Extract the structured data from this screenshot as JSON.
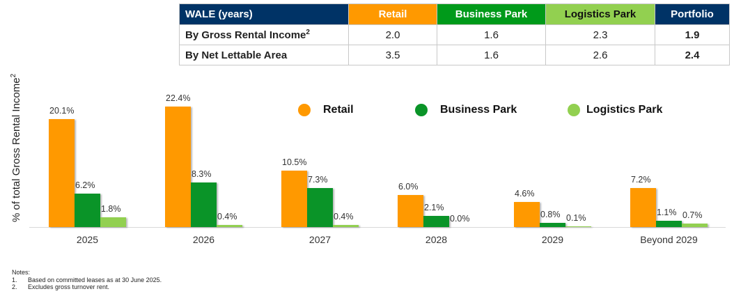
{
  "table": {
    "header": {
      "label": "WALE (years)",
      "columns": [
        {
          "name": "Retail",
          "bg": "#FF9900",
          "fg": "#FFFFFF"
        },
        {
          "name": "Business Park",
          "bg": "#009A1A",
          "fg": "#FFFFFF"
        },
        {
          "name": "Logistics Park",
          "bg": "#92D050",
          "fg": "#111111"
        },
        {
          "name": "Portfolio",
          "bg": "#003366",
          "fg": "#FFFFFF"
        }
      ],
      "label_bg": "#003366"
    },
    "rows": [
      {
        "label": "By Gross Rental Income",
        "sup": "2",
        "values": [
          "2.0",
          "1.6",
          "2.3",
          "1.9"
        ]
      },
      {
        "label": "By Net Lettable Area",
        "sup": "",
        "values": [
          "3.5",
          "1.6",
          "2.6",
          "2.4"
        ]
      }
    ]
  },
  "legend": [
    {
      "label": "Retail",
      "color": "#FF9900"
    },
    {
      "label": "Business Park",
      "color": "#0A9428"
    },
    {
      "label": "Logistics Park",
      "color": "#92D050"
    }
  ],
  "axis": {
    "ylabel": "% of total Gross Rental Income",
    "ylabel_sup": "2"
  },
  "notes": {
    "title": "Notes:",
    "items": [
      {
        "num": "1.",
        "text": "Based on committed leases as at 30 June 2025."
      },
      {
        "num": "2.",
        "text": "Excludes gross turnover rent."
      }
    ]
  },
  "chart_data": {
    "type": "bar",
    "title": "",
    "xlabel": "",
    "ylabel": "% of total Gross Rental Income",
    "categories": [
      "2025",
      "2026",
      "2027",
      "2028",
      "2029",
      "Beyond 2029"
    ],
    "series": [
      {
        "name": "Retail",
        "color": "#FF9900",
        "values": [
          20.1,
          22.4,
          10.5,
          6.0,
          4.6,
          7.2
        ],
        "labels": [
          "20.1%",
          "22.4%",
          "10.5%",
          "6.0%",
          "4.6%",
          "7.2%"
        ]
      },
      {
        "name": "Business Park",
        "color": "#0A9428",
        "values": [
          6.2,
          8.3,
          7.3,
          2.1,
          0.8,
          1.1
        ],
        "labels": [
          "6.2%",
          "8.3%",
          "7.3%",
          "2.1%",
          "0.8%",
          "1.1%"
        ]
      },
      {
        "name": "Logistics Park",
        "color": "#92D050",
        "values": [
          1.8,
          0.4,
          0.4,
          0.0,
          0.1,
          0.7
        ],
        "labels": [
          "1.8%",
          "0.4%",
          "0.4%",
          "0.0%",
          "0.1%",
          "0.7%"
        ]
      }
    ],
    "grid": false,
    "legend_position": "top-right",
    "ylim": [
      0,
      23
    ]
  }
}
